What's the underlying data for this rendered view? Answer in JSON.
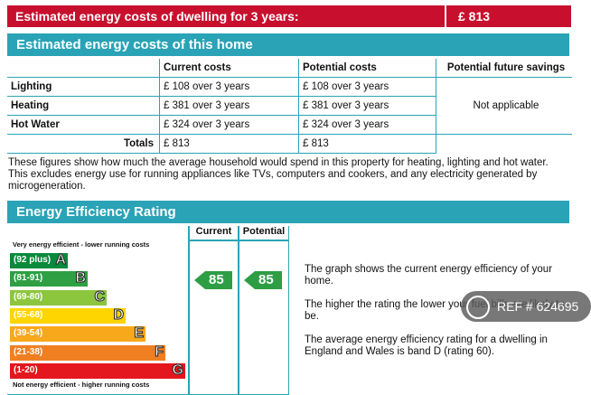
{
  "top_bar": {
    "label": "Estimated energy costs of dwelling for 3 years:",
    "value": "£ 813"
  },
  "costs_section": {
    "title": "Estimated energy costs of this home",
    "headers": [
      "",
      "Current costs",
      "Potential costs",
      "Potential future savings"
    ],
    "rows": [
      {
        "label": "Lighting",
        "current": "£ 108 over 3 years",
        "potential": "£ 108 over 3 years"
      },
      {
        "label": "Heating",
        "current": "£ 381 over 3 years",
        "potential": "£ 381 over 3 years"
      },
      {
        "label": "Hot Water",
        "current": "£ 324 over 3 years",
        "potential": "£ 324 over 3 years"
      }
    ],
    "savings": "Not applicable",
    "totals": {
      "label": "Totals",
      "current": "£ 813",
      "potential": "£ 813"
    },
    "description": "These figures show how much the average household would spend in this property for heating, lighting and hot water. This excludes energy use for running appliances like TVs, computers and cookers, and any electricity generated by microgeneration."
  },
  "rating_section": {
    "title": "Energy Efficiency Rating",
    "col_current": "Current",
    "col_potential": "Potential",
    "top_note": "Very energy efficient - lower running costs",
    "bottom_note": "Not energy efficient - higher running costs",
    "bands": [
      {
        "range": "(92 plus)",
        "letter": "A",
        "color": "#0a8a3c"
      },
      {
        "range": "(81-91)",
        "letter": "B",
        "color": "#2ea043"
      },
      {
        "range": "(69-80)",
        "letter": "C",
        "color": "#8cc63f"
      },
      {
        "range": "(55-68)",
        "letter": "D",
        "color": "#ffd500"
      },
      {
        "range": "(39-54)",
        "letter": "E",
        "color": "#f7a81b"
      },
      {
        "range": "(21-38)",
        "letter": "F",
        "color": "#f07f22"
      },
      {
        "range": "(1-20)",
        "letter": "G",
        "color": "#e3171d"
      }
    ],
    "current_rating": "85",
    "potential_rating": "85",
    "info_1": "The graph shows the current energy efficiency of your home.",
    "info_2": "The higher the rating the lower your fuel bills are likely to be.",
    "info_3": "The average energy efficiency rating for a dwelling in England and Wales is band D (rating 60)."
  },
  "watermark": {
    "text": "REF # 624695"
  }
}
